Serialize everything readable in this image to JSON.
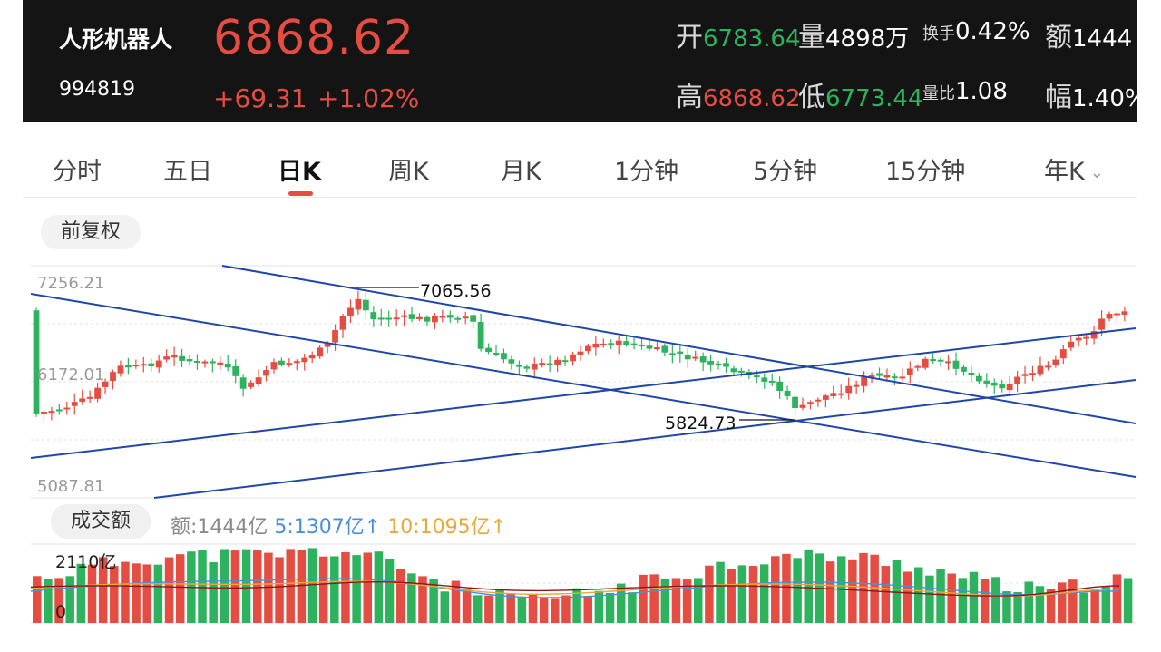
{
  "header": {
    "name": "人形机器人",
    "code": "994819",
    "price": "6868.62",
    "change": "+69.31",
    "change_pct": "+1.02%",
    "quotes": {
      "open_label": "开",
      "open": "6783.64",
      "vol_label": "量",
      "vol": "4898万",
      "turnover_label": "换手",
      "turnover": "0.42%",
      "amount_label": "额",
      "amount": "1444",
      "high_label": "高",
      "high": "6868.62",
      "low_label": "低",
      "low": "6773.44",
      "vol_ratio_label": "量比",
      "vol_ratio": "1.08",
      "amp_label": "幅",
      "amp": "1.40%"
    }
  },
  "tabs": [
    "分时",
    "五日",
    "日K",
    "周K",
    "月K",
    "1分钟",
    "5分钟",
    "15分钟",
    "年K"
  ],
  "active_tab": "日K",
  "adjust_label": "前复权",
  "chart": {
    "y_labels": [
      "7256.21",
      "6172.01",
      "5087.81"
    ],
    "high_label": "7065.56",
    "low_label": "5824.73"
  },
  "volume": {
    "label": "成交额",
    "amount_text": "额:1444亿",
    "ma5_text": "5:1307亿↑",
    "ma10_text": "10:1095亿↑",
    "y_max_label": "2110亿",
    "y_min_label": "0"
  },
  "colors": {
    "up": "#e54d42",
    "down": "#2db35d",
    "trendline": "#1f46a8",
    "ma5": "#4a90d9",
    "ma10": "#e6a93a"
  }
}
